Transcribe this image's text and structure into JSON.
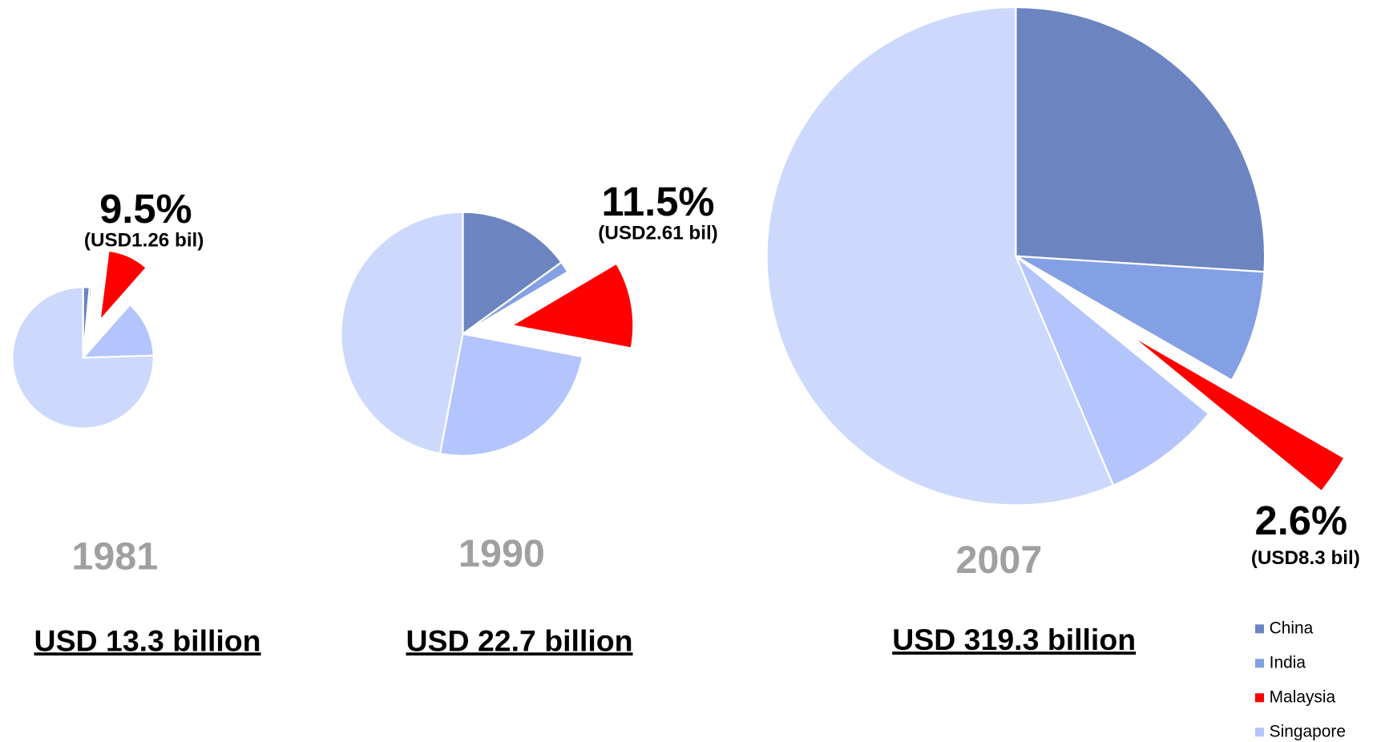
{
  "chart_data": [
    {
      "type": "pie",
      "title": "1981",
      "subtitle": "USD 13.3 billion",
      "annotation": "(USD1.26 bil)",
      "categories": [
        "China",
        "India",
        "Malaysia",
        "Singapore",
        null
      ],
      "values": [
        1.5,
        0.5,
        9.5,
        13,
        75.5
      ],
      "value_labels": [
        null,
        null,
        "9.5%",
        null,
        null
      ],
      "colors": [
        "#6c84c0",
        "#84a0e4",
        "#ff0000",
        "#b4c4fc",
        "#ccd9fc"
      ]
    },
    {
      "type": "pie",
      "title": "1990",
      "subtitle": "USD 22.7 billion",
      "annotation": "(USD2.61 bil)",
      "categories": [
        "China",
        "India",
        "Malaysia",
        "Singapore",
        null
      ],
      "values": [
        15,
        1.5,
        11.5,
        25,
        47
      ],
      "value_labels": [
        null,
        null,
        "11.5%",
        null,
        null
      ],
      "colors": [
        "#6c84c0",
        "#84a0e4",
        "#ff0000",
        "#b4c4fc",
        "#ccd9fc"
      ]
    },
    {
      "type": "pie",
      "title": "2007",
      "subtitle": "USD 319.3 billion",
      "annotation": "(USD8.3 bil)",
      "categories": [
        "China",
        "India",
        "Malaysia",
        "Singapore",
        null
      ],
      "values": [
        26,
        7.3,
        2.6,
        7.7,
        56.4
      ],
      "value_labels": [
        null,
        null,
        "2.6%",
        null,
        null
      ],
      "colors": [
        "#6c84c0",
        "#84a0e4",
        "#ff0000",
        "#b4c4fc",
        "#ccd9fc"
      ]
    }
  ]
}
